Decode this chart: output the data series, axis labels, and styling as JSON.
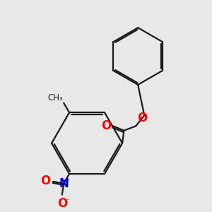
{
  "background_color": "#e8e8e8",
  "bond_color": "#1a1a1a",
  "bond_width": 1.6,
  "atom_colors": {
    "O": "#ff0000",
    "N": "#0000cd",
    "C": "#1a1a1a"
  }
}
